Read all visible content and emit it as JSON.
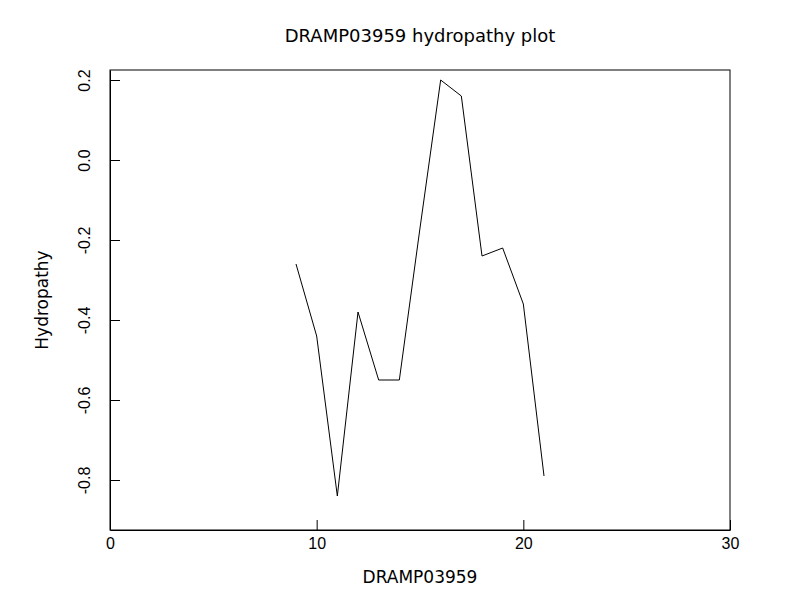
{
  "chart_data": {
    "type": "line",
    "title": "DRAMP03959 hydropathy plot",
    "x_label": "DRAMP03959",
    "y_label": "Hydropathy",
    "x": [
      9,
      10,
      11,
      12,
      13,
      14,
      15,
      16,
      17,
      18,
      19,
      20,
      21
    ],
    "values": [
      -0.26,
      -0.44,
      -0.84,
      -0.38,
      -0.55,
      -0.55,
      -0.17,
      0.2,
      0.16,
      -0.24,
      -0.22,
      -0.36,
      -0.79
    ],
    "color": "#000000",
    "xlim": [
      0,
      30
    ],
    "xticks": [
      0,
      10,
      20,
      30
    ],
    "ylim": [
      -0.925,
      0.225
    ],
    "yticks": [
      -0.8,
      -0.6,
      -0.4,
      -0.2,
      {
        "value": 0,
        "label": "0.0"
      },
      0.2
    ],
    "grid": false
  }
}
